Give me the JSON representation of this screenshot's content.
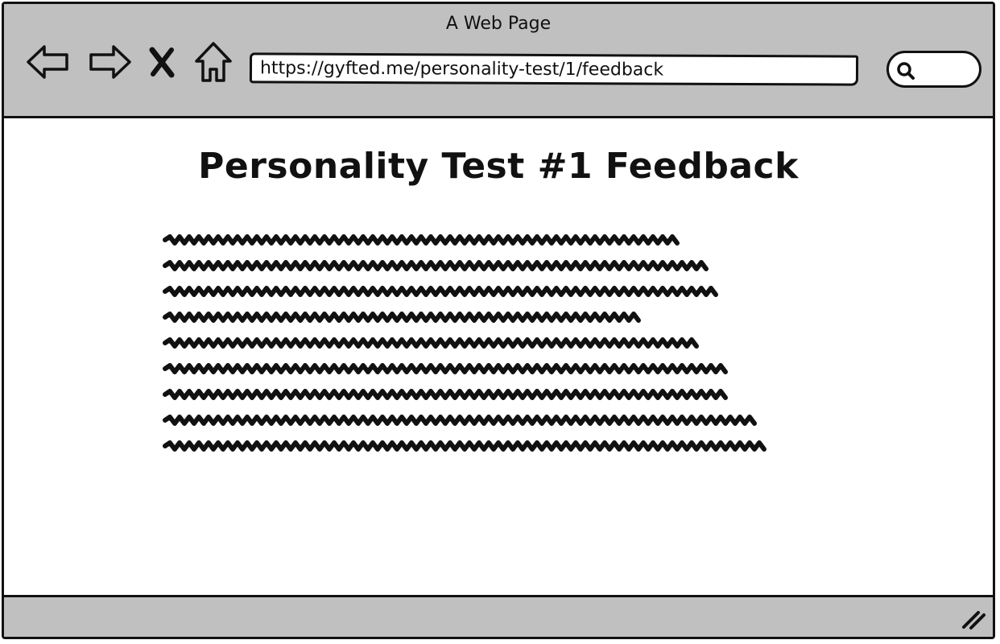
{
  "window": {
    "title": "A Web Page"
  },
  "toolbar": {
    "back_icon": "back-arrow-icon",
    "forward_icon": "forward-arrow-icon",
    "stop_icon": "close-icon",
    "home_icon": "home-icon",
    "url": "https://gyfted.me/personality-test/1/feedback",
    "search_icon": "search-icon"
  },
  "page": {
    "title": "Personality Test #1 Feedback",
    "body_placeholder_lines": 9
  },
  "colors": {
    "chrome": "#c0c0c0",
    "stroke": "#111111",
    "background": "#ffffff"
  }
}
